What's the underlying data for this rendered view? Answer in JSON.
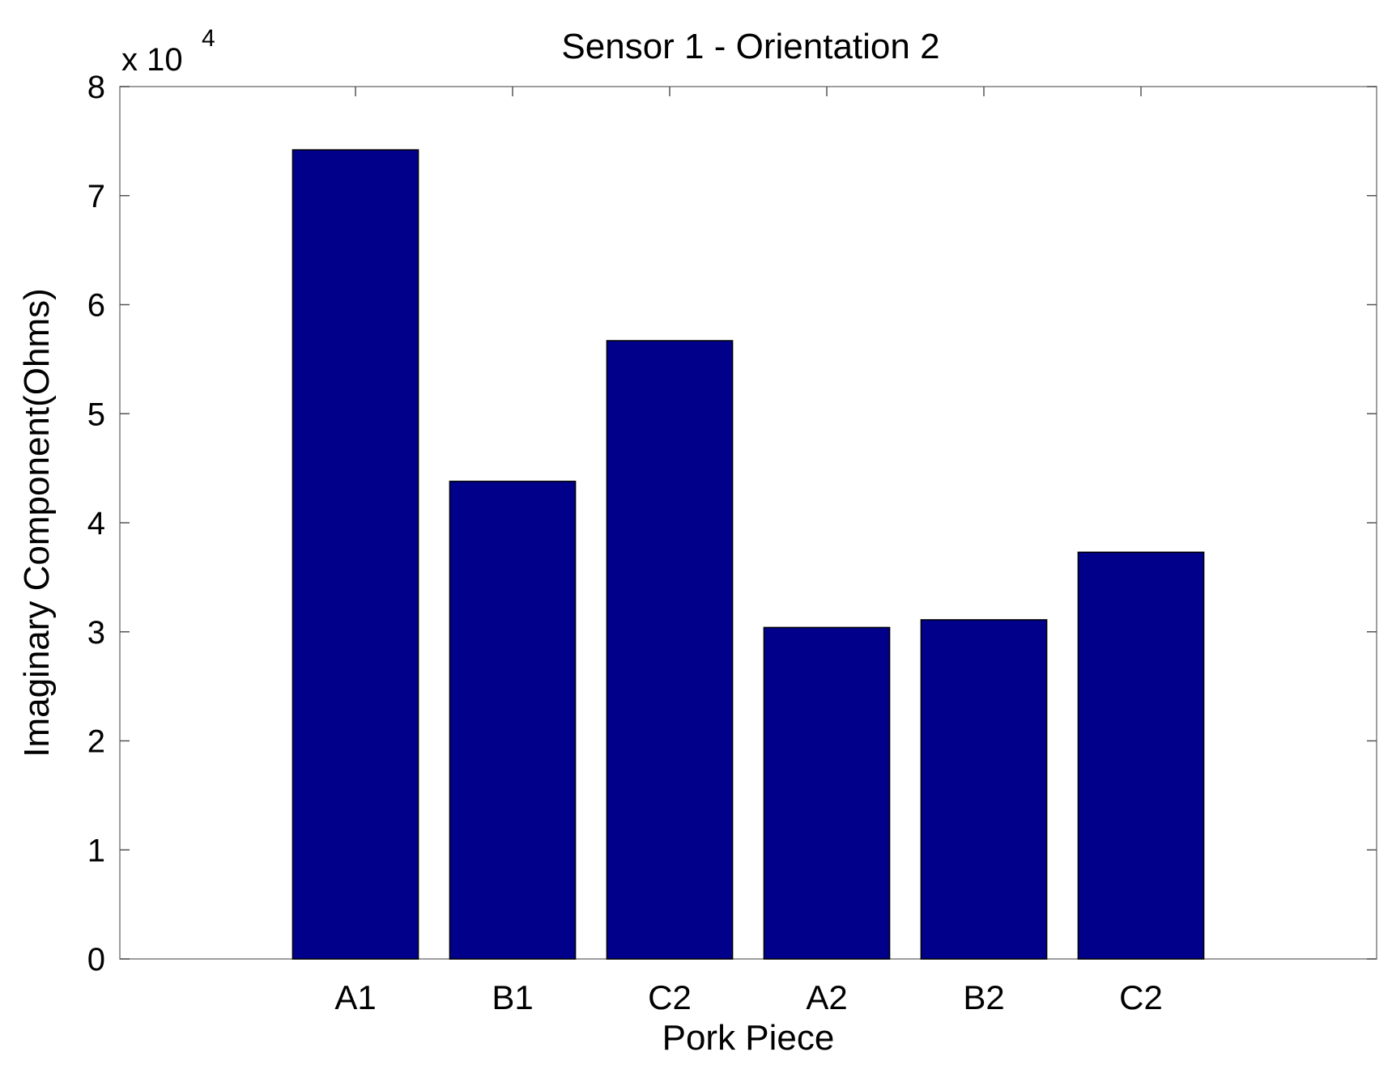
{
  "chart_data": {
    "type": "bar",
    "title": "Sensor 1 - Orientation 2",
    "xlabel": "Pork Piece",
    "ylabel": "Imaginary Component(Ohms)",
    "categories": [
      "A1",
      "B1",
      "C2",
      "A2",
      "B2",
      "C2"
    ],
    "values": [
      74200,
      43800,
      56700,
      30400,
      31100,
      37300
    ],
    "ylim": [
      0,
      80000
    ],
    "yticks": [
      0,
      1,
      2,
      3,
      4,
      5,
      6,
      7,
      8
    ],
    "ytick_labels": [
      "0",
      "1",
      "2",
      "3",
      "4",
      "5",
      "6",
      "7",
      "8"
    ],
    "y_exponent_base": "x 10",
    "y_exponent_power": "4",
    "y_scale_factor": 10000,
    "grid": false,
    "bar_color": "#00008B",
    "bar_edge_color": "#000000"
  }
}
